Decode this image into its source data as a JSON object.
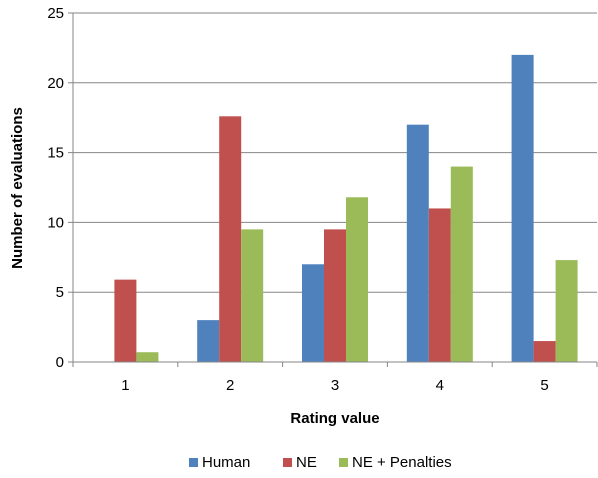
{
  "chart_data": {
    "type": "bar",
    "title": "",
    "xlabel": "Rating value",
    "ylabel": "Number of evaluations",
    "categories": [
      "1",
      "2",
      "3",
      "4",
      "5"
    ],
    "ylim": [
      0,
      25
    ],
    "yticks": [
      0,
      5,
      10,
      15,
      20,
      25
    ],
    "grid": "horizontal",
    "legend_position": "bottom",
    "series": [
      {
        "name": "Human",
        "color": "#4f81bd",
        "values": [
          0,
          3,
          7,
          17,
          22
        ]
      },
      {
        "name": "NE",
        "color": "#c0504d",
        "values": [
          5.9,
          17.6,
          9.5,
          11.0,
          1.5
        ]
      },
      {
        "name": "NE + Penalties",
        "color": "#9bbb59",
        "values": [
          0.7,
          9.5,
          11.8,
          14.0,
          7.3
        ]
      }
    ]
  }
}
